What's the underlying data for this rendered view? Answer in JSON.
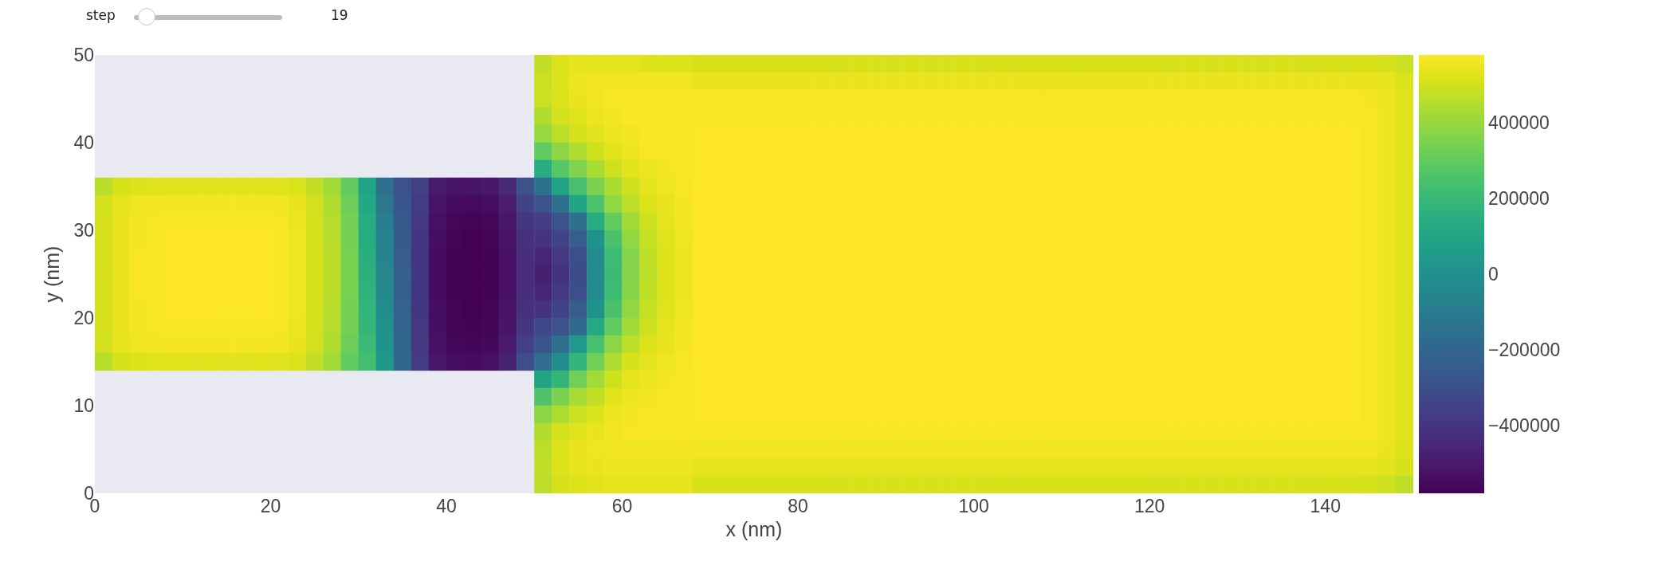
{
  "chart_data": {
    "type": "heatmap",
    "xlabel": "x (nm)",
    "ylabel": "y (nm)",
    "annotations": [
      "step",
      "19"
    ],
    "xlim": [
      0,
      150
    ],
    "xticks": [
      0,
      20,
      40,
      60,
      80,
      100,
      120,
      140
    ],
    "ylim": [
      0,
      50
    ],
    "yticks": [
      0,
      10,
      20,
      30,
      40,
      50
    ],
    "clim": [
      -580000,
      580000
    ],
    "cticks": [
      {
        "value": -400000,
        "label": "−400000"
      },
      {
        "value": -200000,
        "label": "−200000"
      },
      0,
      200000,
      400000
    ],
    "x": [
      1,
      3,
      5,
      7,
      9,
      11,
      13,
      15,
      17,
      19,
      21,
      23,
      25,
      27,
      29,
      31,
      33,
      35,
      37,
      39,
      41,
      43,
      45,
      47,
      49,
      51,
      53,
      55,
      57,
      59,
      61,
      63,
      65,
      67,
      69,
      71,
      73,
      75,
      77,
      79,
      81,
      83,
      85,
      87,
      89,
      91,
      93,
      95,
      97,
      99,
      101,
      103,
      105,
      107,
      109,
      111,
      113,
      115,
      117,
      119,
      121,
      123,
      125,
      127,
      129,
      131,
      133,
      135,
      137,
      139,
      141,
      143,
      145,
      147,
      149
    ],
    "y": [
      49,
      47,
      45,
      43,
      41,
      39,
      37,
      35,
      33,
      31,
      29,
      27,
      25,
      23,
      21,
      19,
      17,
      15,
      13,
      11,
      9,
      7,
      5,
      3,
      1
    ],
    "cells": [
      [
        null,
        null,
        null,
        null,
        null,
        null,
        null,
        null,
        null,
        null,
        null,
        null,
        null,
        null,
        null,
        null,
        null,
        null,
        null,
        null,
        null,
        null,
        null,
        null,
        null,
        475000,
        520000,
        535000,
        535000,
        535000,
        535000,
        520000,
        520000,
        520000,
        510000,
        510000,
        510000,
        510000,
        510000,
        510000,
        510000,
        510000,
        510000,
        510000,
        510000,
        510000,
        510000,
        510000,
        510000,
        510000,
        510000,
        510000,
        510000,
        510000,
        510000,
        510000,
        510000,
        510000,
        510000,
        510000,
        510000,
        510000,
        510000,
        510000,
        510000,
        510000,
        510000,
        510000,
        510000,
        510000,
        510000,
        510000,
        510000,
        505000,
        490000
      ],
      [
        null,
        null,
        null,
        null,
        null,
        null,
        null,
        null,
        null,
        null,
        null,
        null,
        null,
        null,
        null,
        null,
        null,
        null,
        null,
        null,
        null,
        null,
        null,
        null,
        null,
        490000,
        520000,
        550000,
        560000,
        560000,
        560000,
        560000,
        560000,
        560000,
        545000,
        545000,
        545000,
        545000,
        545000,
        545000,
        545000,
        545000,
        545000,
        545000,
        545000,
        545000,
        545000,
        545000,
        545000,
        545000,
        545000,
        545000,
        545000,
        545000,
        545000,
        545000,
        545000,
        545000,
        545000,
        545000,
        545000,
        545000,
        545000,
        545000,
        545000,
        545000,
        545000,
        545000,
        545000,
        545000,
        545000,
        545000,
        545000,
        540000,
        515000
      ],
      [
        null,
        null,
        null,
        null,
        null,
        null,
        null,
        null,
        null,
        null,
        null,
        null,
        null,
        null,
        null,
        null,
        null,
        null,
        null,
        null,
        null,
        null,
        null,
        null,
        null,
        490000,
        515000,
        545000,
        560000,
        570000,
        570000,
        570000,
        570000,
        570000,
        570000,
        570000,
        570000,
        570000,
        570000,
        570000,
        570000,
        570000,
        570000,
        570000,
        570000,
        570000,
        570000,
        570000,
        570000,
        570000,
        570000,
        570000,
        570000,
        570000,
        570000,
        570000,
        570000,
        570000,
        570000,
        570000,
        570000,
        570000,
        570000,
        570000,
        570000,
        570000,
        570000,
        570000,
        570000,
        570000,
        570000,
        570000,
        565000,
        548000,
        525000
      ],
      [
        null,
        null,
        null,
        null,
        null,
        null,
        null,
        null,
        null,
        null,
        null,
        null,
        null,
        null,
        null,
        null,
        null,
        null,
        null,
        null,
        null,
        null,
        null,
        null,
        null,
        445000,
        505000,
        525000,
        550000,
        560000,
        575000,
        575000,
        575000,
        575000,
        575000,
        575000,
        575000,
        575000,
        575000,
        575000,
        575000,
        575000,
        575000,
        575000,
        575000,
        575000,
        575000,
        575000,
        575000,
        575000,
        575000,
        575000,
        575000,
        575000,
        575000,
        575000,
        575000,
        575000,
        575000,
        575000,
        575000,
        575000,
        575000,
        575000,
        575000,
        575000,
        575000,
        575000,
        575000,
        575000,
        575000,
        575000,
        570000,
        550000,
        525000
      ],
      [
        null,
        null,
        null,
        null,
        null,
        null,
        null,
        null,
        null,
        null,
        null,
        null,
        null,
        null,
        null,
        null,
        null,
        null,
        null,
        null,
        null,
        null,
        null,
        null,
        null,
        400000,
        465000,
        505000,
        530000,
        550000,
        560000,
        575000,
        575000,
        575000,
        580000,
        580000,
        580000,
        580000,
        580000,
        580000,
        580000,
        580000,
        580000,
        580000,
        580000,
        580000,
        580000,
        580000,
        580000,
        580000,
        580000,
        580000,
        580000,
        580000,
        580000,
        580000,
        580000,
        580000,
        580000,
        580000,
        580000,
        580000,
        580000,
        580000,
        580000,
        580000,
        580000,
        580000,
        580000,
        580000,
        580000,
        580000,
        570000,
        550000,
        525000
      ],
      [
        null,
        null,
        null,
        null,
        null,
        null,
        null,
        null,
        null,
        null,
        null,
        null,
        null,
        null,
        null,
        null,
        null,
        null,
        null,
        null,
        null,
        null,
        null,
        null,
        null,
        300000,
        385000,
        440000,
        495000,
        530000,
        550000,
        570000,
        575000,
        575000,
        580000,
        580000,
        580000,
        580000,
        580000,
        580000,
        580000,
        580000,
        580000,
        580000,
        580000,
        580000,
        580000,
        580000,
        580000,
        580000,
        580000,
        580000,
        580000,
        580000,
        580000,
        580000,
        580000,
        580000,
        580000,
        580000,
        580000,
        580000,
        580000,
        580000,
        580000,
        580000,
        580000,
        580000,
        580000,
        580000,
        580000,
        580000,
        570000,
        550000,
        525000
      ],
      [
        null,
        null,
        null,
        null,
        null,
        null,
        null,
        null,
        null,
        null,
        null,
        null,
        null,
        null,
        null,
        null,
        null,
        null,
        null,
        null,
        null,
        null,
        null,
        null,
        null,
        130000,
        275000,
        360000,
        430000,
        495000,
        530000,
        550000,
        565000,
        575000,
        580000,
        580000,
        580000,
        580000,
        580000,
        580000,
        580000,
        580000,
        580000,
        580000,
        580000,
        580000,
        580000,
        580000,
        580000,
        580000,
        580000,
        580000,
        580000,
        580000,
        580000,
        580000,
        580000,
        580000,
        580000,
        580000,
        580000,
        580000,
        580000,
        580000,
        580000,
        580000,
        580000,
        580000,
        580000,
        580000,
        580000,
        580000,
        570000,
        550000,
        525000
      ],
      [
        460000,
        510000,
        520000,
        525000,
        530000,
        530000,
        530000,
        530000,
        530000,
        530000,
        525000,
        515000,
        475000,
        420000,
        300000,
        90000,
        -150000,
        -290000,
        -360000,
        -500000,
        -520000,
        -520000,
        -510000,
        -450000,
        -290000,
        -150000,
        90000,
        240000,
        350000,
        435000,
        495000,
        535000,
        555000,
        570000,
        580000,
        580000,
        580000,
        580000,
        580000,
        580000,
        580000,
        580000,
        580000,
        580000,
        580000,
        580000,
        580000,
        580000,
        580000,
        580000,
        580000,
        580000,
        580000,
        580000,
        580000,
        580000,
        580000,
        580000,
        580000,
        580000,
        580000,
        580000,
        580000,
        580000,
        580000,
        580000,
        580000,
        580000,
        580000,
        580000,
        580000,
        580000,
        570000,
        550000,
        525000
      ],
      [
        500000,
        540000,
        555000,
        560000,
        565000,
        565000,
        565000,
        565000,
        565000,
        565000,
        560000,
        545000,
        500000,
        440000,
        320000,
        110000,
        -120000,
        -270000,
        -380000,
        -520000,
        -545000,
        -550000,
        -540000,
        -490000,
        -350000,
        -280000,
        -150000,
        100000,
        255000,
        390000,
        465000,
        515000,
        545000,
        565000,
        580000,
        580000,
        580000,
        580000,
        580000,
        580000,
        580000,
        580000,
        580000,
        580000,
        580000,
        580000,
        580000,
        580000,
        580000,
        580000,
        580000,
        580000,
        580000,
        580000,
        580000,
        580000,
        580000,
        580000,
        580000,
        580000,
        580000,
        580000,
        580000,
        580000,
        580000,
        580000,
        580000,
        580000,
        580000,
        580000,
        580000,
        580000,
        570000,
        550000,
        525000
      ],
      [
        505000,
        545000,
        565000,
        570000,
        575000,
        575000,
        575000,
        575000,
        575000,
        575000,
        570000,
        550000,
        505000,
        450000,
        335000,
        130000,
        -90000,
        -255000,
        -390000,
        -530000,
        -560000,
        -570000,
        -560000,
        -510000,
        -400000,
        -370000,
        -290000,
        -150000,
        140000,
        300000,
        420000,
        495000,
        535000,
        560000,
        580000,
        580000,
        580000,
        580000,
        580000,
        580000,
        580000,
        580000,
        580000,
        580000,
        580000,
        580000,
        580000,
        580000,
        580000,
        580000,
        580000,
        580000,
        580000,
        580000,
        580000,
        580000,
        580000,
        580000,
        580000,
        580000,
        580000,
        580000,
        580000,
        580000,
        580000,
        580000,
        580000,
        580000,
        580000,
        580000,
        580000,
        580000,
        570000,
        550000,
        525000
      ],
      [
        505000,
        545000,
        565000,
        575000,
        580000,
        580000,
        580000,
        580000,
        580000,
        580000,
        575000,
        555000,
        505000,
        455000,
        340000,
        140000,
        -70000,
        -245000,
        -395000,
        -540000,
        -570000,
        -580000,
        -570000,
        -520000,
        -420000,
        -410000,
        -350000,
        -240000,
        0,
        250000,
        390000,
        480000,
        525000,
        555000,
        580000,
        580000,
        580000,
        580000,
        580000,
        580000,
        580000,
        580000,
        580000,
        580000,
        580000,
        580000,
        580000,
        580000,
        580000,
        580000,
        580000,
        580000,
        580000,
        580000,
        580000,
        580000,
        580000,
        580000,
        580000,
        580000,
        580000,
        580000,
        580000,
        580000,
        580000,
        580000,
        580000,
        580000,
        580000,
        580000,
        580000,
        580000,
        570000,
        550000,
        525000
      ],
      [
        505000,
        545000,
        570000,
        575000,
        580000,
        580000,
        580000,
        580000,
        580000,
        580000,
        575000,
        555000,
        505000,
        460000,
        345000,
        150000,
        -60000,
        -240000,
        -395000,
        -545000,
        -575000,
        -580000,
        -575000,
        -525000,
        -430000,
        -460000,
        -390000,
        -300000,
        -30000,
        220000,
        370000,
        470000,
        520000,
        550000,
        580000,
        580000,
        580000,
        580000,
        580000,
        580000,
        580000,
        580000,
        580000,
        580000,
        580000,
        580000,
        580000,
        580000,
        580000,
        580000,
        580000,
        580000,
        580000,
        580000,
        580000,
        580000,
        580000,
        580000,
        580000,
        580000,
        580000,
        580000,
        580000,
        580000,
        580000,
        580000,
        580000,
        580000,
        580000,
        580000,
        580000,
        580000,
        570000,
        550000,
        525000
      ],
      [
        505000,
        545000,
        570000,
        575000,
        580000,
        580000,
        580000,
        580000,
        580000,
        580000,
        575000,
        555000,
        505000,
        460000,
        345000,
        160000,
        -50000,
        -235000,
        -395000,
        -545000,
        -575000,
        -580000,
        -575000,
        -525000,
        -430000,
        -480000,
        -410000,
        -310000,
        -30000,
        215000,
        370000,
        465000,
        520000,
        550000,
        580000,
        580000,
        580000,
        580000,
        580000,
        580000,
        580000,
        580000,
        580000,
        580000,
        580000,
        580000,
        580000,
        580000,
        580000,
        580000,
        580000,
        580000,
        580000,
        580000,
        580000,
        580000,
        580000,
        580000,
        580000,
        580000,
        580000,
        580000,
        580000,
        580000,
        580000,
        580000,
        580000,
        580000,
        580000,
        580000,
        580000,
        580000,
        570000,
        550000,
        525000
      ],
      [
        505000,
        545000,
        570000,
        575000,
        580000,
        580000,
        580000,
        580000,
        580000,
        580000,
        575000,
        555000,
        505000,
        460000,
        345000,
        170000,
        -40000,
        -230000,
        -395000,
        -545000,
        -575000,
        -580000,
        -575000,
        -525000,
        -430000,
        -460000,
        -390000,
        -300000,
        -30000,
        220000,
        375000,
        470000,
        520000,
        550000,
        580000,
        580000,
        580000,
        580000,
        580000,
        580000,
        580000,
        580000,
        580000,
        580000,
        580000,
        580000,
        580000,
        580000,
        580000,
        580000,
        580000,
        580000,
        580000,
        580000,
        580000,
        580000,
        580000,
        580000,
        580000,
        580000,
        580000,
        580000,
        580000,
        580000,
        580000,
        580000,
        580000,
        580000,
        580000,
        580000,
        580000,
        580000,
        570000,
        550000,
        525000
      ],
      [
        505000,
        545000,
        565000,
        575000,
        580000,
        580000,
        580000,
        580000,
        580000,
        580000,
        575000,
        555000,
        505000,
        455000,
        340000,
        180000,
        -20000,
        -220000,
        -395000,
        -540000,
        -570000,
        -580000,
        -570000,
        -520000,
        -420000,
        -410000,
        -350000,
        -240000,
        0,
        250000,
        390000,
        480000,
        525000,
        555000,
        580000,
        580000,
        580000,
        580000,
        580000,
        580000,
        580000,
        580000,
        580000,
        580000,
        580000,
        580000,
        580000,
        580000,
        580000,
        580000,
        580000,
        580000,
        580000,
        580000,
        580000,
        580000,
        580000,
        580000,
        580000,
        580000,
        580000,
        580000,
        580000,
        580000,
        580000,
        580000,
        580000,
        580000,
        580000,
        580000,
        580000,
        580000,
        570000,
        550000,
        525000
      ],
      [
        505000,
        545000,
        565000,
        570000,
        575000,
        575000,
        575000,
        575000,
        575000,
        575000,
        570000,
        550000,
        505000,
        450000,
        335000,
        190000,
        0,
        -210000,
        -390000,
        -535000,
        -565000,
        -575000,
        -565000,
        -515000,
        -400000,
        -330000,
        -290000,
        -180000,
        120000,
        300000,
        420000,
        495000,
        535000,
        560000,
        580000,
        580000,
        580000,
        580000,
        580000,
        580000,
        580000,
        580000,
        580000,
        580000,
        580000,
        580000,
        580000,
        580000,
        580000,
        580000,
        580000,
        580000,
        580000,
        580000,
        580000,
        580000,
        580000,
        580000,
        580000,
        580000,
        580000,
        580000,
        580000,
        580000,
        580000,
        580000,
        580000,
        580000,
        580000,
        580000,
        580000,
        580000,
        570000,
        550000,
        525000
      ],
      [
        500000,
        540000,
        555000,
        560000,
        565000,
        565000,
        565000,
        565000,
        565000,
        565000,
        560000,
        545000,
        500000,
        440000,
        320000,
        210000,
        10000,
        -200000,
        -385000,
        -525000,
        -555000,
        -565000,
        -555000,
        -500000,
        -360000,
        -280000,
        -160000,
        40000,
        240000,
        380000,
        465000,
        515000,
        545000,
        565000,
        580000,
        580000,
        580000,
        580000,
        580000,
        580000,
        580000,
        580000,
        580000,
        580000,
        580000,
        580000,
        580000,
        580000,
        580000,
        580000,
        580000,
        580000,
        580000,
        580000,
        580000,
        580000,
        580000,
        580000,
        580000,
        580000,
        580000,
        580000,
        580000,
        580000,
        580000,
        580000,
        580000,
        580000,
        580000,
        580000,
        580000,
        580000,
        570000,
        550000,
        525000
      ],
      [
        460000,
        505000,
        520000,
        525000,
        530000,
        530000,
        530000,
        530000,
        530000,
        530000,
        525000,
        515000,
        475000,
        420000,
        300000,
        230000,
        30000,
        -190000,
        -380000,
        -510000,
        -540000,
        -545000,
        -530000,
        -470000,
        -300000,
        -170000,
        -10000,
        180000,
        330000,
        440000,
        510000,
        535000,
        555000,
        570000,
        580000,
        580000,
        580000,
        580000,
        580000,
        580000,
        580000,
        580000,
        580000,
        580000,
        580000,
        580000,
        580000,
        580000,
        580000,
        580000,
        580000,
        580000,
        580000,
        580000,
        580000,
        580000,
        580000,
        580000,
        580000,
        580000,
        580000,
        580000,
        580000,
        580000,
        580000,
        580000,
        580000,
        580000,
        580000,
        580000,
        580000,
        580000,
        570000,
        550000,
        525000
      ],
      [
        null,
        null,
        null,
        null,
        null,
        null,
        null,
        null,
        null,
        null,
        null,
        null,
        null,
        null,
        null,
        null,
        null,
        null,
        null,
        null,
        null,
        null,
        null,
        null,
        null,
        90000,
        190000,
        330000,
        420000,
        495000,
        535000,
        550000,
        565000,
        575000,
        580000,
        580000,
        580000,
        580000,
        580000,
        580000,
        580000,
        580000,
        580000,
        580000,
        580000,
        580000,
        580000,
        580000,
        580000,
        580000,
        580000,
        580000,
        580000,
        580000,
        580000,
        580000,
        580000,
        580000,
        580000,
        580000,
        580000,
        580000,
        580000,
        580000,
        580000,
        580000,
        580000,
        580000,
        580000,
        580000,
        580000,
        580000,
        570000,
        550000,
        525000
      ],
      [
        null,
        null,
        null,
        null,
        null,
        null,
        null,
        null,
        null,
        null,
        null,
        null,
        null,
        null,
        null,
        null,
        null,
        null,
        null,
        null,
        null,
        null,
        null,
        null,
        null,
        260000,
        350000,
        430000,
        475000,
        530000,
        550000,
        560000,
        570000,
        575000,
        580000,
        580000,
        580000,
        580000,
        580000,
        580000,
        580000,
        580000,
        580000,
        580000,
        580000,
        580000,
        580000,
        580000,
        580000,
        580000,
        580000,
        580000,
        580000,
        580000,
        580000,
        580000,
        580000,
        580000,
        580000,
        580000,
        580000,
        580000,
        580000,
        580000,
        580000,
        580000,
        580000,
        580000,
        580000,
        580000,
        580000,
        580000,
        570000,
        550000,
        525000
      ],
      [
        null,
        null,
        null,
        null,
        null,
        null,
        null,
        null,
        null,
        null,
        null,
        null,
        null,
        null,
        null,
        null,
        null,
        null,
        null,
        null,
        null,
        null,
        null,
        null,
        null,
        380000,
        440000,
        490000,
        515000,
        550000,
        560000,
        570000,
        575000,
        575000,
        580000,
        580000,
        580000,
        580000,
        580000,
        580000,
        580000,
        580000,
        580000,
        580000,
        580000,
        580000,
        580000,
        580000,
        580000,
        580000,
        580000,
        580000,
        580000,
        580000,
        580000,
        580000,
        580000,
        580000,
        580000,
        580000,
        580000,
        580000,
        580000,
        580000,
        580000,
        580000,
        580000,
        580000,
        580000,
        580000,
        580000,
        580000,
        570000,
        550000,
        525000
      ],
      [
        null,
        null,
        null,
        null,
        null,
        null,
        null,
        null,
        null,
        null,
        null,
        null,
        null,
        null,
        null,
        null,
        null,
        null,
        null,
        null,
        null,
        null,
        null,
        null,
        null,
        445000,
        505000,
        525000,
        545000,
        560000,
        570000,
        570000,
        570000,
        570000,
        575000,
        575000,
        575000,
        575000,
        575000,
        575000,
        575000,
        575000,
        575000,
        575000,
        575000,
        575000,
        575000,
        575000,
        575000,
        575000,
        575000,
        575000,
        575000,
        575000,
        575000,
        575000,
        575000,
        575000,
        575000,
        575000,
        575000,
        575000,
        575000,
        575000,
        575000,
        575000,
        575000,
        575000,
        575000,
        575000,
        575000,
        575000,
        570000,
        550000,
        525000
      ],
      [
        null,
        null,
        null,
        null,
        null,
        null,
        null,
        null,
        null,
        null,
        null,
        null,
        null,
        null,
        null,
        null,
        null,
        null,
        null,
        null,
        null,
        null,
        null,
        null,
        null,
        465000,
        520000,
        545000,
        555000,
        560000,
        560000,
        560000,
        560000,
        565000,
        560000,
        560000,
        560000,
        560000,
        560000,
        560000,
        560000,
        560000,
        560000,
        560000,
        560000,
        560000,
        560000,
        560000,
        560000,
        560000,
        560000,
        560000,
        560000,
        560000,
        560000,
        560000,
        560000,
        560000,
        560000,
        560000,
        560000,
        560000,
        560000,
        560000,
        560000,
        560000,
        560000,
        560000,
        560000,
        560000,
        560000,
        560000,
        560000,
        545000,
        520000
      ],
      [
        null,
        null,
        null,
        null,
        null,
        null,
        null,
        null,
        null,
        null,
        null,
        null,
        null,
        null,
        null,
        null,
        null,
        null,
        null,
        null,
        null,
        null,
        null,
        null,
        null,
        475000,
        520000,
        535000,
        545000,
        550000,
        550000,
        550000,
        550000,
        550000,
        535000,
        535000,
        535000,
        535000,
        535000,
        535000,
        535000,
        535000,
        535000,
        535000,
        535000,
        535000,
        535000,
        535000,
        535000,
        535000,
        535000,
        535000,
        535000,
        535000,
        535000,
        535000,
        535000,
        535000,
        535000,
        535000,
        535000,
        535000,
        535000,
        535000,
        535000,
        535000,
        535000,
        535000,
        535000,
        535000,
        535000,
        535000,
        535000,
        530000,
        510000
      ],
      [
        null,
        null,
        null,
        null,
        null,
        null,
        null,
        null,
        null,
        null,
        null,
        null,
        null,
        null,
        null,
        null,
        null,
        null,
        null,
        null,
        null,
        null,
        null,
        null,
        null,
        465000,
        505000,
        520000,
        530000,
        535000,
        535000,
        535000,
        535000,
        535000,
        510000,
        510000,
        510000,
        510000,
        510000,
        510000,
        510000,
        510000,
        510000,
        510000,
        510000,
        510000,
        510000,
        510000,
        510000,
        510000,
        510000,
        510000,
        510000,
        510000,
        510000,
        510000,
        510000,
        510000,
        510000,
        510000,
        510000,
        510000,
        510000,
        510000,
        510000,
        510000,
        510000,
        510000,
        510000,
        510000,
        510000,
        510000,
        505000,
        495000,
        465000
      ]
    ]
  }
}
